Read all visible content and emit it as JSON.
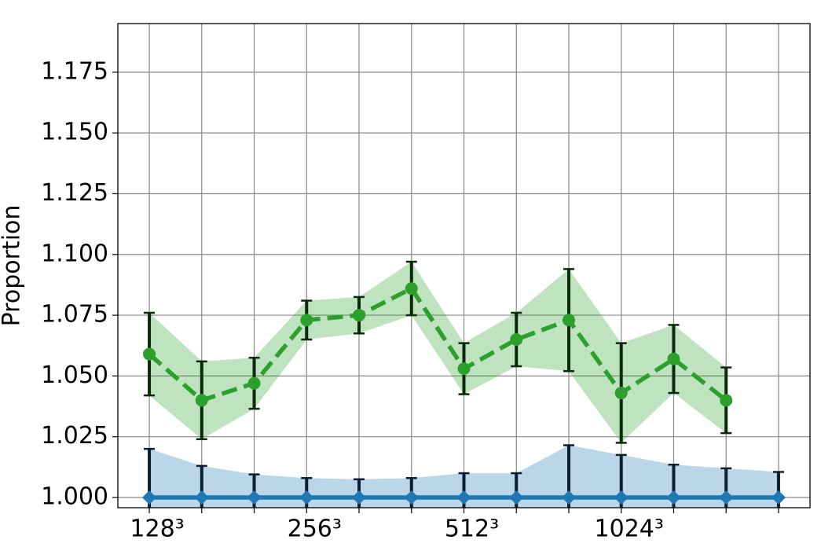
{
  "chart_data": {
    "type": "line",
    "ylabel": "Proportion",
    "categories": [
      "128³",
      null,
      null,
      "256³",
      null,
      null,
      "512³",
      null,
      null,
      "1024³",
      null,
      null,
      null
    ],
    "xlim": [
      -0.6,
      12.6
    ],
    "ylim": [
      0.9958,
      1.195
    ],
    "yticks": [
      {
        "value": 1.0,
        "label": "1.000"
      },
      {
        "value": 1.025,
        "label": "1.025"
      },
      {
        "value": 1.05,
        "label": "1.050"
      },
      {
        "value": 1.075,
        "label": "1.075"
      },
      {
        "value": 1.1,
        "label": "1.100"
      },
      {
        "value": 1.125,
        "label": "1.125"
      },
      {
        "value": 1.15,
        "label": "1.150"
      },
      {
        "value": 1.175,
        "label": "1.175"
      }
    ],
    "grid": true,
    "series": [
      {
        "color": "#2ca02c",
        "marker": "circle",
        "dashed": true,
        "values": [
          1.059,
          1.04,
          1.047,
          1.073,
          1.075,
          1.086,
          1.053,
          1.065,
          1.073,
          1.043,
          1.057,
          1.04,
          null
        ],
        "errors": [
          0.017,
          0.016,
          0.0105,
          0.008,
          0.0075,
          0.011,
          0.0105,
          0.011,
          0.021,
          0.0205,
          0.014,
          0.0135,
          null
        ]
      },
      {
        "color": "#1f77b4",
        "marker": "diamond",
        "dashed": false,
        "values": [
          1.0,
          1.0,
          1.0,
          1.0,
          1.0,
          1.0,
          1.0,
          1.0,
          1.0,
          1.0,
          1.0,
          1.0,
          1.0
        ],
        "errors": [
          0.02,
          0.013,
          0.0095,
          0.008,
          0.0075,
          0.008,
          0.01,
          0.01,
          0.0215,
          0.0175,
          0.0135,
          0.012,
          0.0105
        ]
      }
    ]
  }
}
